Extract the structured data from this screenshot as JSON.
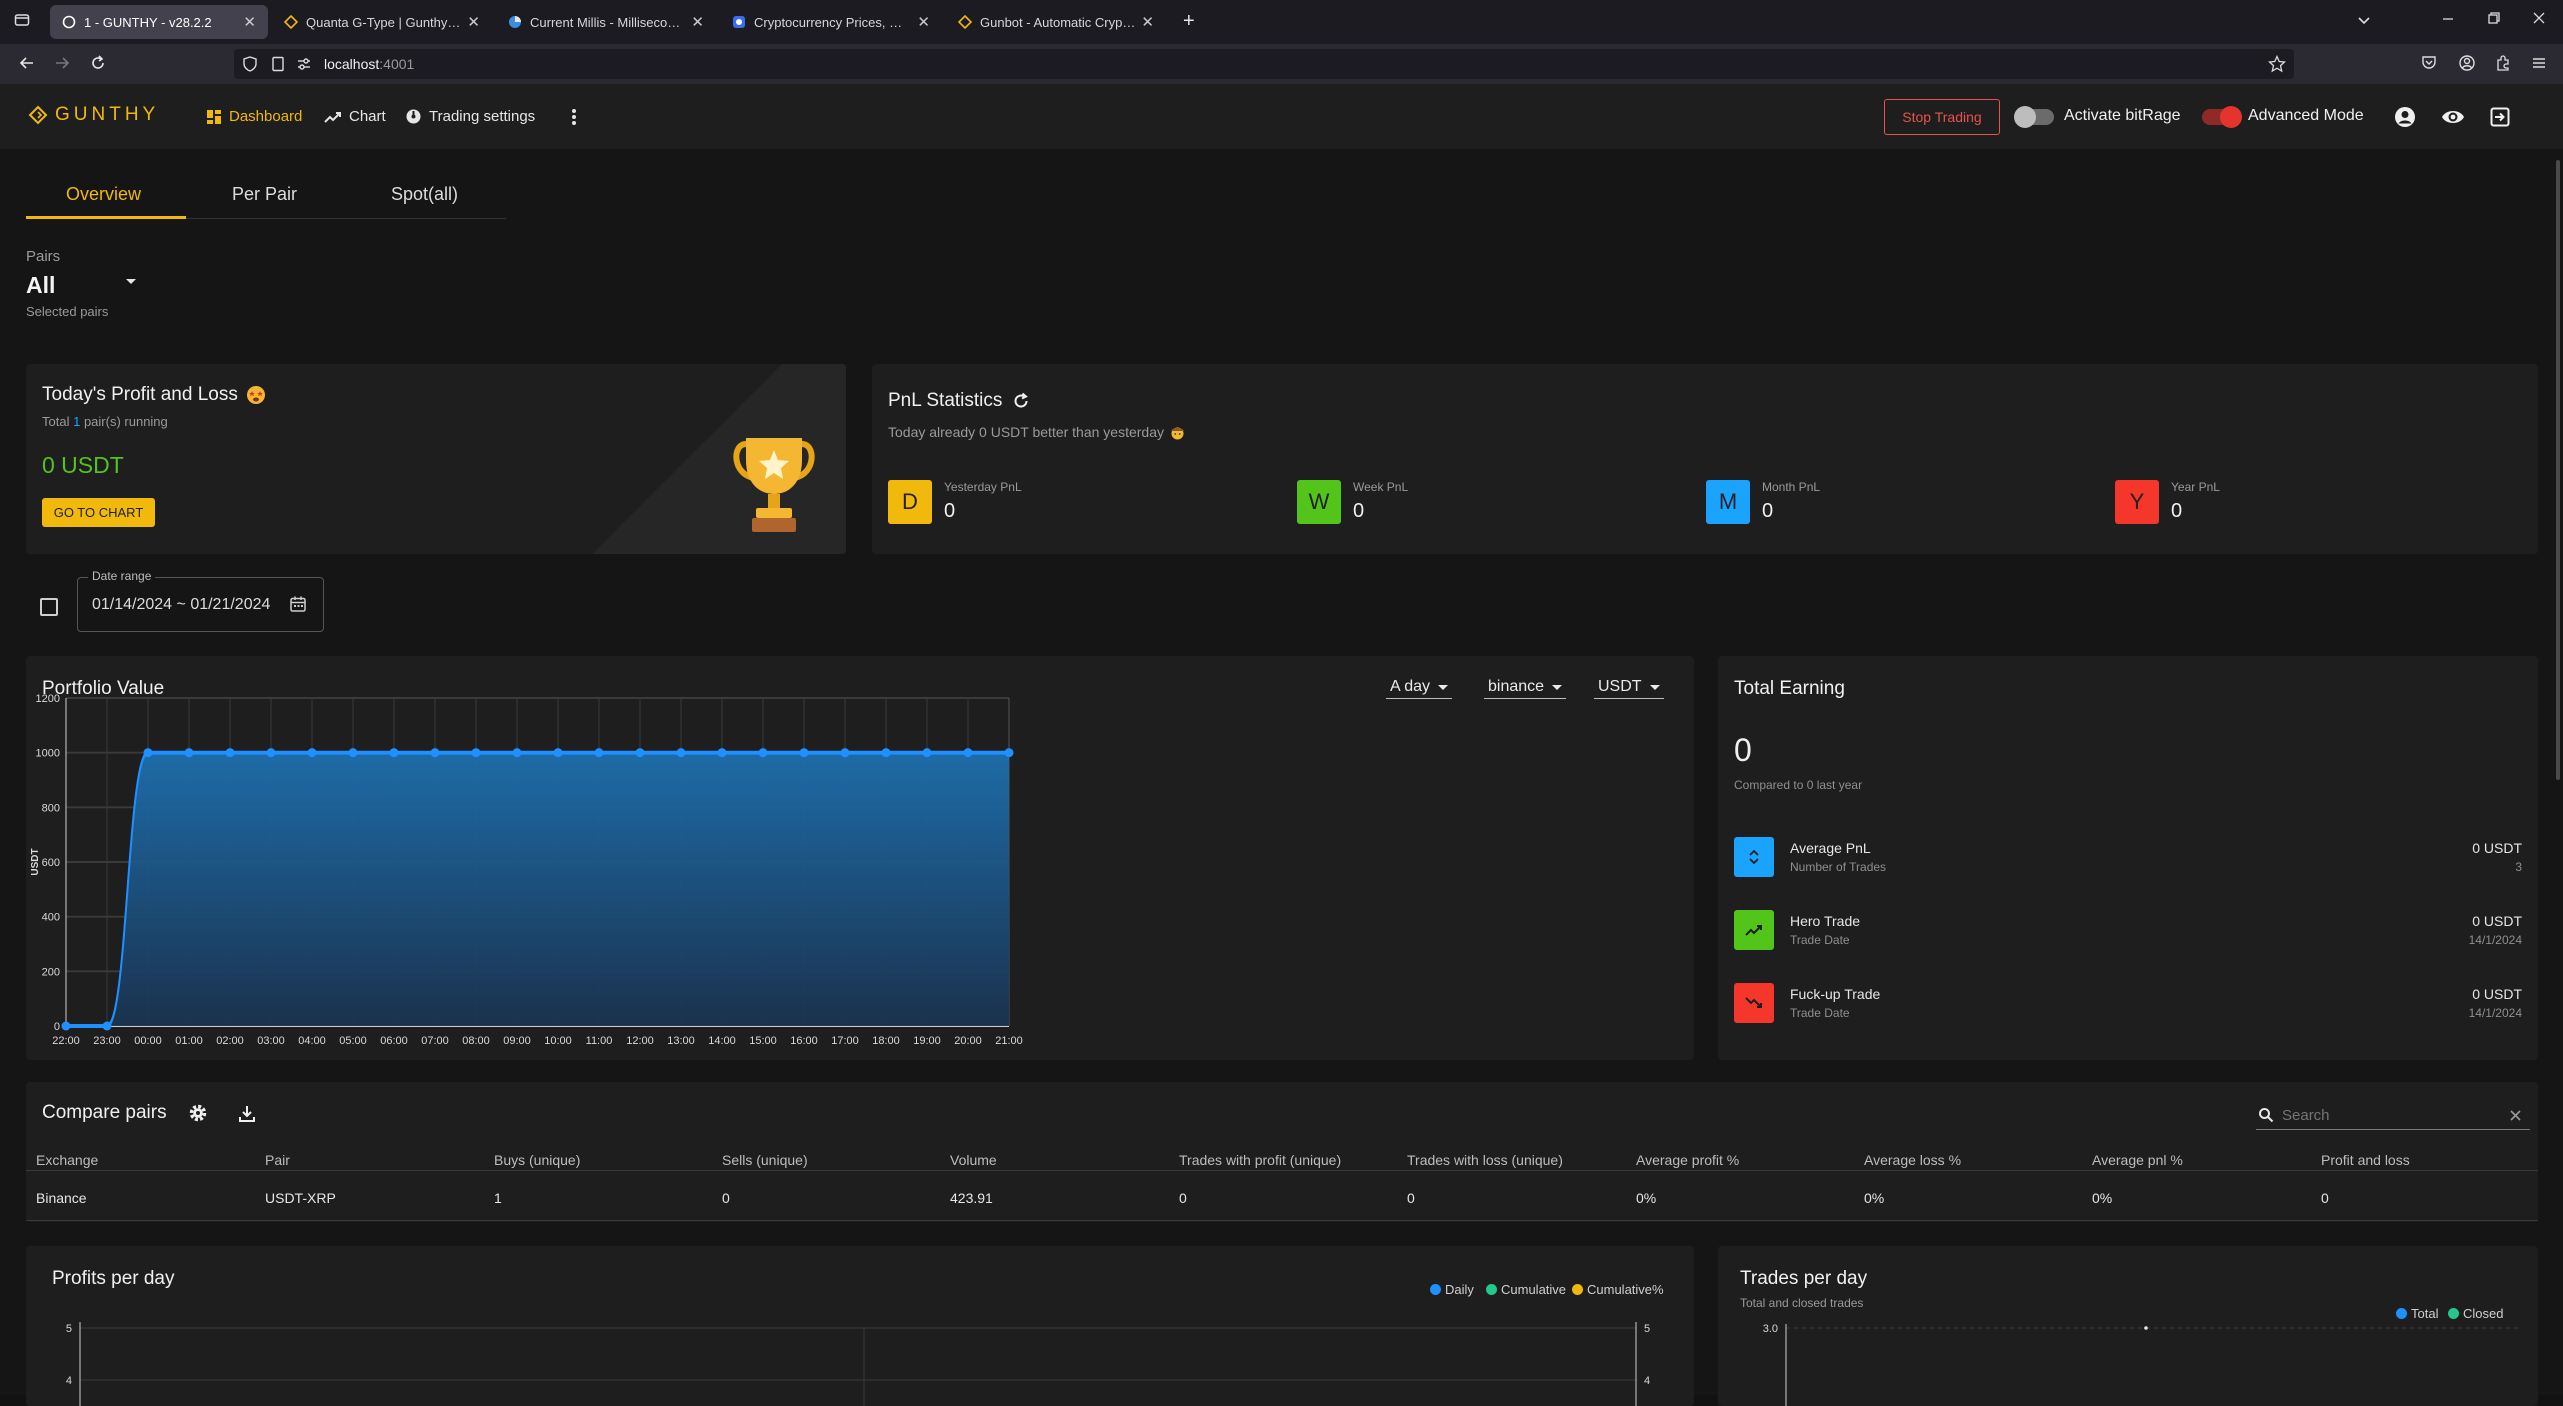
{
  "browser": {
    "tabs": [
      {
        "label": "1 - GUNTHY - v28.2.2",
        "active": true
      },
      {
        "label": "Quanta G-Type | Gunthy Market"
      },
      {
        "label": "Current Millis - Milliseconds sin"
      },
      {
        "label": "Cryptocurrency Prices, Charts A"
      },
      {
        "label": "Gunbot - Automatic Crypto Tra"
      }
    ],
    "url_host": "localhost",
    "url_port": ":4001"
  },
  "header": {
    "logo": "GUNTHY",
    "nav": {
      "dashboard": "Dashboard",
      "chart": "Chart",
      "trading_settings": "Trading settings"
    },
    "stop_trading": "Stop Trading",
    "bitrage_label": "Activate bitRage",
    "advanced_mode_label": "Advanced Mode",
    "accent": "#f0b90b"
  },
  "tabs": {
    "overview": "Overview",
    "per_pair": "Per Pair",
    "spot_all": "Spot(all)"
  },
  "pairs": {
    "label": "Pairs",
    "value": "All",
    "helper": "Selected pairs"
  },
  "today_pnl": {
    "title": "Today's Profit and Loss",
    "total_prefix": "Total",
    "pairs_running": "1",
    "total_suffix": "pair(s) running",
    "value": "0 USDT",
    "go_to_chart": "GO TO CHART"
  },
  "pnl_stats": {
    "title": "PnL Statistics",
    "subtitle": "Today already 0 USDT better than yesterday",
    "items": [
      {
        "letter": "D",
        "label": "Yesterday PnL",
        "value": "0",
        "color": "#f0b90b"
      },
      {
        "letter": "W",
        "label": "Week PnL",
        "value": "0",
        "color": "#52c41a"
      },
      {
        "letter": "M",
        "label": "Month PnL",
        "value": "0",
        "color": "#1aa3ff"
      },
      {
        "letter": "Y",
        "label": "Year PnL",
        "value": "0",
        "color": "#f5362a"
      }
    ]
  },
  "date_range": {
    "label": "Date range",
    "value": "01/14/2024 ~ 01/21/2024"
  },
  "portfolio": {
    "title": "Portfolio Value",
    "period": "A day",
    "exchange": "binance",
    "currency": "USDT"
  },
  "chart_data": {
    "type": "area",
    "title": "Portfolio Value",
    "xlabel": "",
    "ylabel": "USDT",
    "ylim": [
      0,
      1200
    ],
    "yticks": [
      0,
      200,
      400,
      600,
      800,
      1000,
      1200
    ],
    "x": [
      "22:00",
      "23:00",
      "00:00",
      "01:00",
      "02:00",
      "03:00",
      "04:00",
      "05:00",
      "06:00",
      "07:00",
      "08:00",
      "09:00",
      "10:00",
      "11:00",
      "12:00",
      "13:00",
      "14:00",
      "15:00",
      "16:00",
      "17:00",
      "18:00",
      "19:00",
      "20:00",
      "21:00"
    ],
    "values": [
      0,
      0,
      1000,
      1000,
      1000,
      1000,
      1000,
      1000,
      1000,
      1000,
      1000,
      1000,
      1000,
      1000,
      1000,
      1000,
      1000,
      1000,
      1000,
      1000,
      1000,
      1000,
      1000,
      1000
    ],
    "grid": true,
    "color": "#1e90ff"
  },
  "total_earning": {
    "title": "Total Earning",
    "value": "0",
    "compared": "Compared to 0 last year",
    "rows": [
      {
        "label": "Average PnL",
        "sub": "Number of Trades",
        "value": "0 USDT",
        "value_sub": "3",
        "color": "#1aa3ff",
        "icon": "swap-vertical-icon"
      },
      {
        "label": "Hero Trade",
        "sub": "Trade Date",
        "value": "0 USDT",
        "value_sub": "14/1/2024",
        "color": "#52c41a",
        "icon": "trending-up-icon"
      },
      {
        "label": "Fuck-up Trade",
        "sub": "Trade Date",
        "value": "0 USDT",
        "value_sub": "14/1/2024",
        "color": "#f5362a",
        "icon": "trending-down-icon"
      }
    ]
  },
  "compare": {
    "title": "Compare pairs",
    "search_placeholder": "Search",
    "columns": [
      "Exchange",
      "Pair",
      "Buys (unique)",
      "Sells (unique)",
      "Volume",
      "Trades with profit (unique)",
      "Trades with loss (unique)",
      "Average profit %",
      "Average loss %",
      "Average pnl %",
      "Profit and loss"
    ],
    "rows": [
      [
        "Binance",
        "USDT-XRP",
        "1",
        "0",
        "423.91",
        "0",
        "0",
        "0%",
        "0%",
        "0%",
        "0"
      ]
    ]
  },
  "profits_per_day": {
    "title": "Profits per day",
    "legend": [
      {
        "name": "Daily",
        "color": "#1e90ff"
      },
      {
        "name": "Cumulative",
        "color": "#22c98a"
      },
      {
        "name": "Cumulative%",
        "color": "#f0b90b"
      }
    ],
    "left_ticks": [
      "5",
      "4"
    ],
    "right_ticks": [
      "5",
      "4"
    ]
  },
  "trades_per_day": {
    "title": "Trades per day",
    "subtitle": "Total and closed trades",
    "legend": [
      {
        "name": "Total",
        "color": "#1e90ff"
      },
      {
        "name": "Closed",
        "color": "#22c98a"
      }
    ],
    "top_tick": "3.0"
  }
}
